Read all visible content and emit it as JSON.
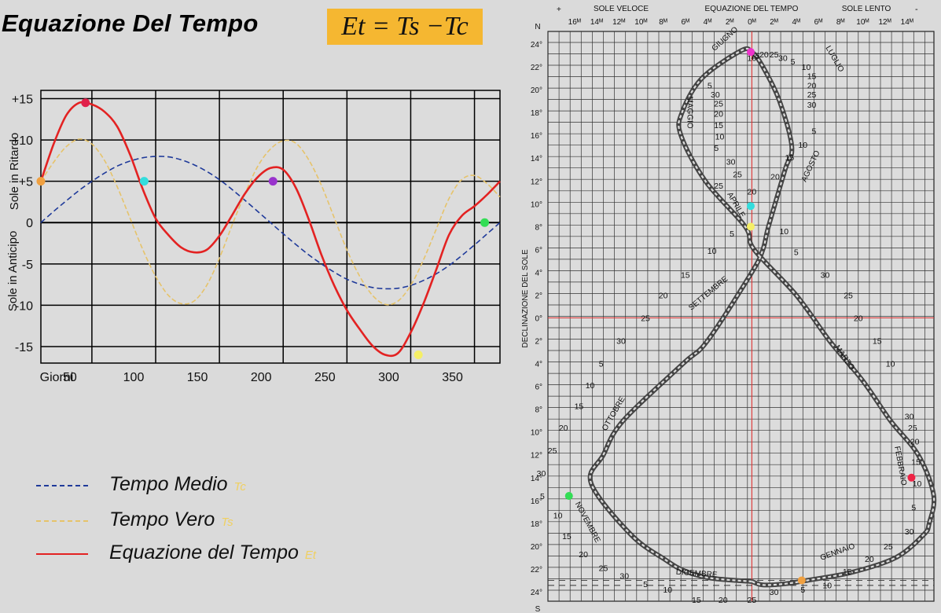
{
  "title": "Equazione Del Tempo",
  "formula": "Et = Ts −Tc",
  "left_chart": {
    "ylabel_top": "Sole in Ritardo",
    "ylabel_bottom": "Sole in Anticipo",
    "y_tick_labels": [
      "+15",
      "+10",
      "+5",
      "0",
      "-5",
      "-10",
      "-15"
    ],
    "y_ticks": [
      15,
      10,
      5,
      0,
      -5,
      -10,
      -15
    ],
    "x_start_label": "Giorni",
    "x_tick_labels": [
      "50",
      "100",
      "150",
      "200",
      "250",
      "300",
      "350"
    ],
    "x_ticks": [
      50,
      100,
      150,
      200,
      250,
      300,
      350
    ],
    "colors": {
      "tempo_medio": "#1f3a9a",
      "tempo_vero": "#e6c36a",
      "equazione": "#e32222"
    }
  },
  "chart_data": {
    "type": "line",
    "x": [
      0,
      10,
      20,
      30,
      40,
      50,
      60,
      70,
      80,
      90,
      100,
      110,
      120,
      130,
      140,
      150,
      160,
      170,
      180,
      190,
      200,
      210,
      220,
      230,
      240,
      250,
      260,
      270,
      280,
      290,
      300,
      310,
      320,
      330,
      340,
      350,
      360
    ],
    "series": [
      {
        "name": "Tempo Medio",
        "values": [
          0.0,
          1.35,
          2.65,
          3.9,
          5.0,
          6.0,
          6.85,
          7.45,
          7.85,
          8.0,
          7.95,
          7.6,
          7.0,
          6.2,
          5.2,
          4.0,
          2.7,
          1.35,
          0.0,
          -1.35,
          -2.65,
          -3.9,
          -5.0,
          -6.0,
          -6.85,
          -7.45,
          -7.85,
          -8.0,
          -7.95,
          -7.6,
          -7.0,
          -6.2,
          -5.2,
          -4.0,
          -2.7,
          -1.35,
          0.0
        ]
      },
      {
        "name": "Tempo Vero",
        "values": [
          5.0,
          7.3,
          9.2,
          10.1,
          9.5,
          7.5,
          4.3,
          0.5,
          -3.3,
          -6.5,
          -8.8,
          -9.8,
          -9.5,
          -7.6,
          -4.3,
          -0.3,
          3.5,
          6.8,
          8.9,
          9.9,
          9.6,
          7.6,
          4.5,
          0.6,
          -3.3,
          -6.5,
          -8.8,
          -9.9,
          -9.5,
          -7.6,
          -4.5,
          -0.8,
          2.9,
          5.2,
          5.7,
          4.7,
          3.1
        ]
      },
      {
        "name": "Equazione del Tempo",
        "values": [
          5.0,
          9.5,
          13.0,
          14.5,
          14.3,
          13.4,
          11.6,
          8.2,
          4.0,
          0.5,
          -1.5,
          -3.0,
          -3.6,
          -3.3,
          -1.6,
          0.9,
          3.5,
          5.5,
          6.6,
          6.4,
          4.2,
          0.4,
          -3.9,
          -7.6,
          -10.6,
          -12.9,
          -14.9,
          -16.0,
          -15.8,
          -13.3,
          -9.8,
          -5.7,
          -1.5,
          0.8,
          2.0,
          3.4,
          5.0
        ]
      }
    ],
    "xlim": [
      0,
      360
    ],
    "ylim": [
      -17,
      16
    ],
    "grid": true,
    "markers": [
      {
        "x": 0,
        "y": 5,
        "color": "#f0a040"
      },
      {
        "x": 35,
        "y": 14.5,
        "color": "#e0204a"
      },
      {
        "x": 81,
        "y": 5,
        "color": "#33dddd"
      },
      {
        "x": 182,
        "y": 5,
        "color": "#9933cc"
      },
      {
        "x": 296,
        "y": -16,
        "color": "#f5ef66"
      },
      {
        "x": 348,
        "y": 0,
        "color": "#33dd55"
      }
    ]
  },
  "legend": {
    "items": [
      {
        "label": "Tempo Medio",
        "symbol": "Tc",
        "color": "#1f3a9a",
        "style": "dashed"
      },
      {
        "label": "Tempo Vero",
        "symbol": "Ts",
        "color": "#e6c36a",
        "style": "dashed"
      },
      {
        "label": "Equazione del Tempo",
        "symbol": "Et",
        "color": "#e32222",
        "style": "solid"
      }
    ]
  },
  "analemma": {
    "top_labels": {
      "plus": "+",
      "minus": "-",
      "sole_veloce": "SOLE VELOCE",
      "equazione": "EQUAZIONE DEL TEMPO",
      "sole_lento": "SOLE LENTO"
    },
    "x_tick_labels": [
      "16ᴹ",
      "14ᴹ",
      "12ᴹ",
      "10ᴹ",
      "8ᴹ",
      "6ᴹ",
      "4ᴹ",
      "2ᴹ",
      "0ᴹ",
      "2ᴹ",
      "4ᴹ",
      "6ᴹ",
      "8ᴹ",
      "10ᴹ",
      "12ᴹ",
      "14ᴹ"
    ],
    "x_tick_values": [
      16,
      14,
      12,
      10,
      8,
      6,
      4,
      2,
      0,
      -2,
      -4,
      -6,
      -8,
      -10,
      -12,
      -14
    ],
    "y_top": "N",
    "y_bottom": "S",
    "y_tick_labels": [
      "24°",
      "22°",
      "20°",
      "18°",
      "16°",
      "14°",
      "12°",
      "10°",
      "8°",
      "6°",
      "4°",
      "2°",
      "0°",
      "2°",
      "4°",
      "6°",
      "8°",
      "10°",
      "12°",
      "14°",
      "16°",
      "18°",
      "20°",
      "22°",
      "24°"
    ],
    "y_tick_values": [
      24,
      22,
      20,
      18,
      16,
      14,
      12,
      10,
      8,
      6,
      4,
      2,
      0,
      -2,
      -4,
      -6,
      -8,
      -10,
      -12,
      -14,
      -16,
      -18,
      -20,
      -22,
      -24
    ],
    "ylabel": "DECLINAZIONE DEL SOLE",
    "curve_eot": [
      0,
      3.7,
      6.0,
      7.8,
      10.9,
      14.5,
      13.4,
      11.6,
      6.2,
      4.0,
      0.0,
      -1.0,
      -1.5,
      -3.0,
      -3.6,
      -2.5,
      -1.0,
      0.0,
      1.0,
      4.5,
      6.3,
      6.4,
      4.2,
      0.6,
      -0.2,
      -4.0,
      -7.0,
      -10.0,
      -12.5,
      -15.0,
      -16.4,
      -16.0,
      -15.5,
      -13.0,
      -9.0,
      -5.0,
      -3.0,
      -1.0,
      0.0
    ],
    "curve_dec": [
      -23.1,
      -22.8,
      -22.2,
      -21.2,
      -19.0,
      -14.5,
      -12.0,
      -9.0,
      -4.0,
      -2.0,
      4.0,
      6.0,
      8.0,
      13.0,
      15.0,
      19.0,
      22.0,
      23.3,
      23.4,
      21.0,
      18.0,
      16.0,
      12.0,
      8.0,
      6.0,
      2.0,
      -2.0,
      -5.5,
      -9.0,
      -12.0,
      -15.5,
      -18.0,
      -19.0,
      -21.0,
      -22.3,
      -23.0,
      -23.3,
      -23.4,
      -23.1
    ],
    "months": [
      {
        "name": "GIUGNO",
        "eot": 2.3,
        "dec": 24.3,
        "rot": -42
      },
      {
        "name": "LUGLIO",
        "eot": -7.3,
        "dec": 22.6,
        "rot": 60
      },
      {
        "name": "MAGGIO",
        "eot": 5.8,
        "dec": 18.0,
        "rot": 90
      },
      {
        "name": "AGOSTO",
        "eot": -5.5,
        "dec": 13.2,
        "rot": -65
      },
      {
        "name": "APRILE",
        "eot": 1.6,
        "dec": 9.8,
        "rot": 60
      },
      {
        "name": "SETTEMBRE",
        "eot": 3.8,
        "dec": 2.0,
        "rot": -40
      },
      {
        "name": "MARZO",
        "eot": -8.2,
        "dec": -3.6,
        "rot": 55
      },
      {
        "name": "OTTOBRE",
        "eot": 12.3,
        "dec": -8.5,
        "rot": -60
      },
      {
        "name": "FEBBRAIO",
        "eot": -13.2,
        "dec": -13.0,
        "rot": 80
      },
      {
        "name": "NOVEMBRE",
        "eot": 15.0,
        "dec": -18.0,
        "rot": 62
      },
      {
        "name": "GENNAIO",
        "eot": -7.8,
        "dec": -20.7,
        "rot": -20
      },
      {
        "name": "DICEMBRE",
        "eot": 5.0,
        "dec": -22.6,
        "rot": 4
      }
    ],
    "day_labels": [
      {
        "t": "10",
        "eot": 0.0,
        "dec": 22.8
      },
      {
        "t": "15",
        "eot": -0.3,
        "dec": 23.0
      },
      {
        "t": "20",
        "eot": -1.1,
        "dec": 23.1
      },
      {
        "t": "25",
        "eot": -2.0,
        "dec": 23.1
      },
      {
        "t": "30",
        "eot": -2.8,
        "dec": 22.8
      },
      {
        "t": "5",
        "eot": -3.7,
        "dec": 22.5
      },
      {
        "t": "10",
        "eot": -4.9,
        "dec": 22.0
      },
      {
        "t": "15",
        "eot": -5.4,
        "dec": 21.2
      },
      {
        "t": "20",
        "eot": -5.4,
        "dec": 20.4
      },
      {
        "t": "25",
        "eot": -5.4,
        "dec": 19.6
      },
      {
        "t": "30",
        "eot": -5.4,
        "dec": 18.7
      },
      {
        "t": "5",
        "eot": -5.6,
        "dec": 16.4
      },
      {
        "t": "10",
        "eot": -4.6,
        "dec": 15.2
      },
      {
        "t": "15",
        "eot": -3.4,
        "dec": 14.1
      },
      {
        "t": "20",
        "eot": -2.1,
        "dec": 12.4
      },
      {
        "t": "25",
        "eot": 3.0,
        "dec": 11.6
      },
      {
        "t": "20",
        "eot": 0.0,
        "dec": 11.1
      },
      {
        "t": "5",
        "eot": 3.8,
        "dec": 20.4
      },
      {
        "t": "30",
        "eot": 3.3,
        "dec": 19.6
      },
      {
        "t": "25",
        "eot": 3.0,
        "dec": 18.8
      },
      {
        "t": "20",
        "eot": 3.0,
        "dec": 17.9
      },
      {
        "t": "15",
        "eot": 3.0,
        "dec": 16.9
      },
      {
        "t": "10",
        "eot": 2.9,
        "dec": 15.9
      },
      {
        "t": "5",
        "eot": 3.2,
        "dec": 14.9
      },
      {
        "t": "30",
        "eot": 1.9,
        "dec": 13.7
      },
      {
        "t": "25",
        "eot": 1.3,
        "dec": 12.6
      },
      {
        "t": "5",
        "eot": 1.8,
        "dec": 7.4
      },
      {
        "t": "10",
        "eot": -2.9,
        "dec": 7.6
      },
      {
        "t": "10",
        "eot": 3.6,
        "dec": 5.9
      },
      {
        "t": "5",
        "eot": -4.0,
        "dec": 5.8
      },
      {
        "t": "15",
        "eot": 6.0,
        "dec": 3.8
      },
      {
        "t": "30",
        "eot": -6.6,
        "dec": 3.8
      },
      {
        "t": "20",
        "eot": 8.0,
        "dec": 2.0
      },
      {
        "t": "25",
        "eot": -8.7,
        "dec": 2.0
      },
      {
        "t": "25",
        "eot": 9.6,
        "dec": 0.0
      },
      {
        "t": "20",
        "eot": -9.6,
        "dec": 0.0
      },
      {
        "t": "30",
        "eot": 11.8,
        "dec": -2.0
      },
      {
        "t": "15",
        "eot": -11.3,
        "dec": -2.0
      },
      {
        "t": "5",
        "eot": 13.6,
        "dec": -4.0
      },
      {
        "t": "10",
        "eot": -12.5,
        "dec": -4.0
      },
      {
        "t": "10",
        "eot": 14.6,
        "dec": -5.9
      },
      {
        "t": "15",
        "eot": 15.6,
        "dec": -7.7
      },
      {
        "t": "20",
        "eot": 17.0,
        "dec": -9.6
      },
      {
        "t": "25",
        "eot": 18.0,
        "dec": -11.6
      },
      {
        "t": "30",
        "eot": 19.0,
        "dec": -13.6
      },
      {
        "t": "5",
        "eot": 18.9,
        "dec": -15.6
      },
      {
        "t": "30",
        "eot": -14.2,
        "dec": -8.6
      },
      {
        "t": "25",
        "eot": -14.5,
        "dec": -9.6
      },
      {
        "t": "20",
        "eot": -14.7,
        "dec": -10.8
      },
      {
        "t": "15",
        "eot": -14.8,
        "dec": -12.6
      },
      {
        "t": "10",
        "eot": -14.9,
        "dec": -14.5
      },
      {
        "t": "5",
        "eot": -14.6,
        "dec": -16.6
      },
      {
        "t": "10",
        "eot": 17.5,
        "dec": -17.3
      },
      {
        "t": "15",
        "eot": 16.7,
        "dec": -19.1
      },
      {
        "t": "20",
        "eot": 15.2,
        "dec": -20.7
      },
      {
        "t": "25",
        "eot": 13.4,
        "dec": -21.9
      },
      {
        "t": "30",
        "eot": 11.5,
        "dec": -22.6
      },
      {
        "t": "5",
        "eot": 9.6,
        "dec": -23.3
      },
      {
        "t": "10",
        "eot": 7.6,
        "dec": -23.8
      },
      {
        "t": "15",
        "eot": 5.0,
        "dec": -24.7
      },
      {
        "t": "20",
        "eot": 2.6,
        "dec": -24.7
      },
      {
        "t": "25",
        "eot": 0.0,
        "dec": -24.7
      },
      {
        "t": "30",
        "eot": -2.0,
        "dec": -24.0
      },
      {
        "t": "5",
        "eot": -4.6,
        "dec": -23.8
      },
      {
        "t": "10",
        "eot": -6.8,
        "dec": -23.4
      },
      {
        "t": "15",
        "eot": -8.6,
        "dec": -22.2
      },
      {
        "t": "20",
        "eot": -10.6,
        "dec": -21.1
      },
      {
        "t": "25",
        "eot": -12.3,
        "dec": -20.0
      },
      {
        "t": "30",
        "eot": -14.2,
        "dec": -18.7
      }
    ],
    "markers": [
      {
        "eot": 0.1,
        "dec": 23.3,
        "color": "#ee33cc"
      },
      {
        "eot": 0.1,
        "dec": 9.8,
        "color": "#33dddd"
      },
      {
        "eot": 0.1,
        "dec": 8.0,
        "color": "#f5ef66"
      },
      {
        "eot": 16.5,
        "dec": -15.6,
        "color": "#33dd55"
      },
      {
        "eot": -14.4,
        "dec": -14.0,
        "color": "#ee2244"
      },
      {
        "eot": -4.5,
        "dec": -23.0,
        "color": "#f0a040"
      }
    ]
  }
}
